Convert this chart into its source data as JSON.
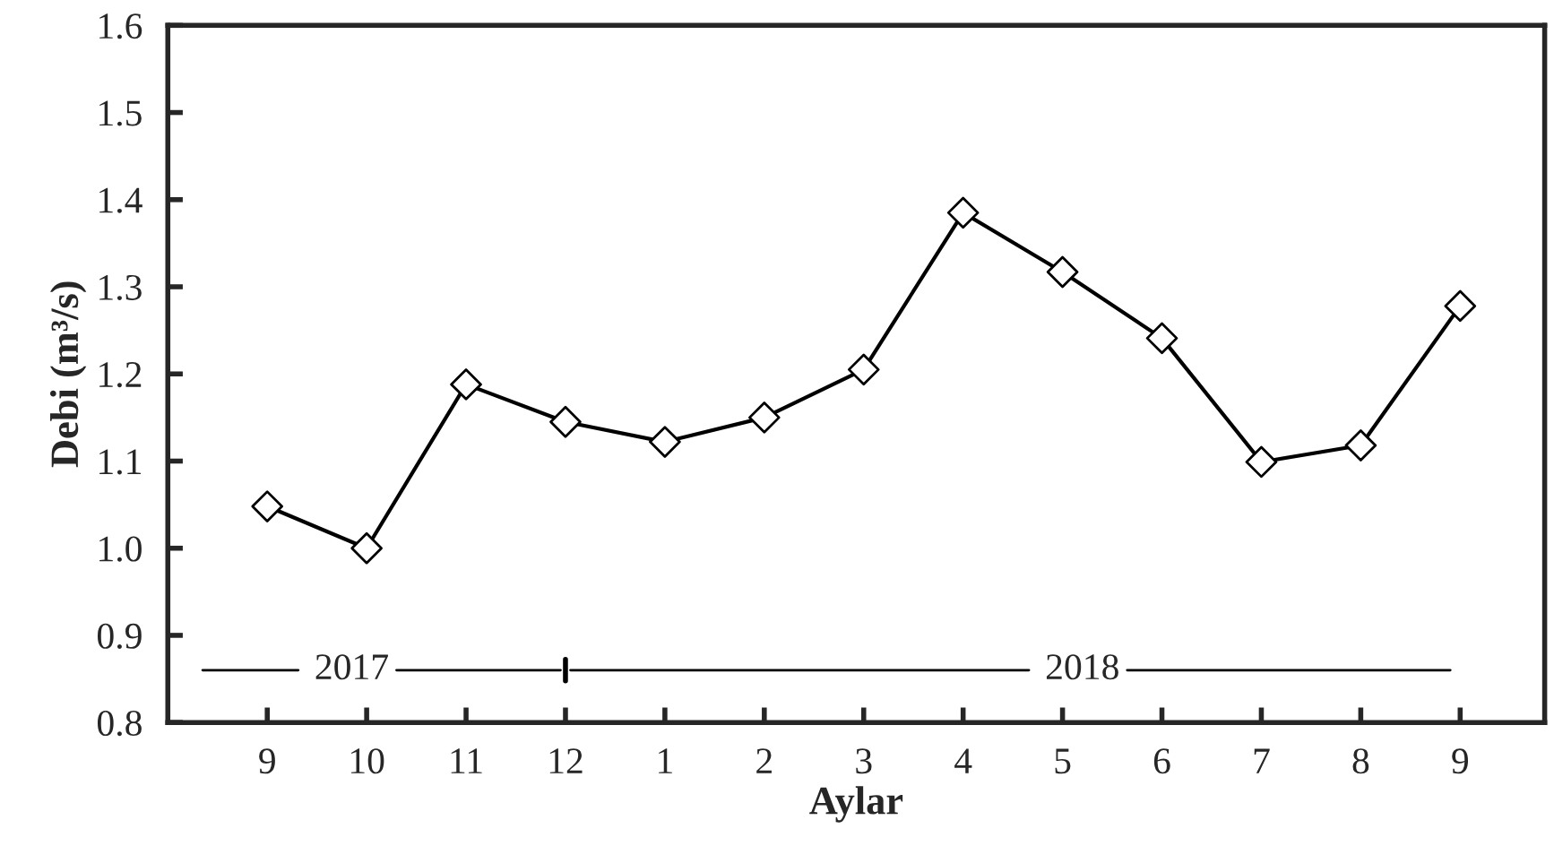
{
  "chart_data": {
    "type": "line",
    "xlabel": "Aylar",
    "ylabel": "Debi (m³/s)",
    "categories": [
      "9",
      "10",
      "11",
      "12",
      "1",
      "2",
      "3",
      "4",
      "5",
      "6",
      "7",
      "8",
      "9"
    ],
    "series": [
      {
        "color": "#000000",
        "values": [
          1.048,
          1.0,
          1.188,
          1.145,
          1.122,
          1.15,
          1.205,
          1.385,
          1.317,
          1.241,
          1.099,
          1.118,
          1.278
        ]
      }
    ],
    "ylim": [
      0.8,
      1.6
    ],
    "yticks": [
      {
        "value": 0.8,
        "label": "0.8"
      },
      {
        "value": 0.9,
        "label": "0.9"
      },
      {
        "value": 1.0,
        "label": "1.0"
      },
      {
        "value": 1.1,
        "label": "1.1"
      },
      {
        "value": 1.2,
        "label": "1.2"
      },
      {
        "value": 1.3,
        "label": "1.3"
      },
      {
        "value": 1.4,
        "label": "1.4"
      },
      {
        "value": 1.5,
        "label": "1.5"
      },
      {
        "value": 1.6,
        "label": "1.6"
      }
    ],
    "annotations": [
      "2017",
      "2018"
    ],
    "marker": "diamond",
    "line_style": "solid",
    "grid": false,
    "legend": false
  }
}
